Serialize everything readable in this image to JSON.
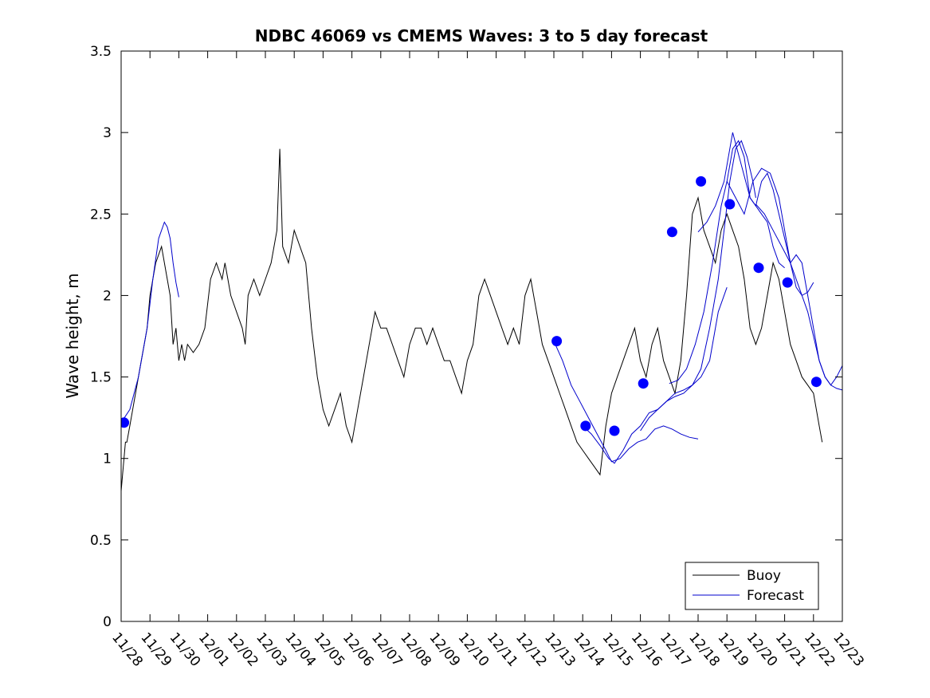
{
  "chart_data": {
    "type": "line",
    "title": "NDBC 46069 vs CMEMS Waves: 3 to 5 day forecast",
    "xlabel": "",
    "ylabel": "Wave height, m",
    "xlim": [
      0,
      25
    ],
    "ylim": [
      0,
      3.5
    ],
    "grid": false,
    "legend_position": "bottom-right",
    "x_tick_labels": [
      "11/28",
      "11/29",
      "11/30",
      "12/01",
      "12/02",
      "12/03",
      "12/04",
      "12/05",
      "12/06",
      "12/07",
      "12/08",
      "12/09",
      "12/10",
      "12/11",
      "12/12",
      "12/13",
      "12/14",
      "12/15",
      "12/16",
      "12/17",
      "12/18",
      "12/19",
      "12/20",
      "12/21",
      "12/22",
      "12/23"
    ],
    "y_ticks": [
      0,
      0.5,
      1,
      1.5,
      2,
      2.5,
      3,
      3.5
    ],
    "colors": {
      "buoy": "#000000",
      "forecast": "#0000cc",
      "markers": "#0000ff"
    },
    "series": [
      {
        "name": "Buoy",
        "x": [
          0.0,
          0.05,
          0.1,
          0.15,
          0.2,
          0.3,
          0.4,
          0.5,
          0.6,
          0.7,
          0.8,
          0.9,
          1.0,
          1.2,
          1.4,
          1.6,
          1.7,
          1.8,
          1.9,
          2.0,
          2.1,
          2.2,
          2.3,
          2.5,
          2.7,
          2.9,
          3.1,
          3.3,
          3.5,
          3.6,
          3.8,
          4.0,
          4.2,
          4.3,
          4.4,
          4.6,
          4.8,
          5.0,
          5.2,
          5.4,
          5.5,
          5.6,
          5.8,
          6.0,
          6.2,
          6.4,
          6.5,
          6.6,
          6.8,
          7.0,
          7.2,
          7.4,
          7.6,
          7.8,
          8.0,
          8.2,
          8.4,
          8.6,
          8.8,
          9.0,
          9.2,
          9.4,
          9.6,
          9.8,
          10.0,
          10.2,
          10.4,
          10.6,
          10.8,
          11.0,
          11.2,
          11.4,
          11.6,
          11.8,
          12.0,
          12.2,
          12.4,
          12.6,
          12.8,
          13.0,
          13.2,
          13.4,
          13.6,
          13.8,
          14.0,
          14.2,
          14.4,
          14.6,
          14.8,
          15.0,
          15.2,
          15.4,
          15.6,
          15.8,
          16.0,
          16.2,
          16.4,
          16.6,
          16.8,
          17.0,
          17.2,
          17.4,
          17.6,
          17.8,
          18.0,
          18.2,
          18.4,
          18.6,
          18.8,
          19.0,
          19.2,
          19.4,
          19.6,
          19.8,
          20.0,
          20.2,
          20.4,
          20.6,
          20.8,
          21.0,
          21.2,
          21.4,
          21.6,
          21.8,
          22.0,
          22.2,
          22.4,
          22.6,
          22.8,
          23.0,
          23.2,
          23.4,
          23.6,
          23.8,
          24.0,
          24.2,
          24.3
        ],
        "y": [
          0.8,
          0.9,
          1.0,
          1.1,
          1.1,
          1.2,
          1.3,
          1.4,
          1.5,
          1.6,
          1.7,
          1.8,
          2.0,
          2.2,
          2.3,
          2.1,
          2.0,
          1.7,
          1.8,
          1.6,
          1.7,
          1.6,
          1.7,
          1.65,
          1.7,
          1.8,
          2.1,
          2.2,
          2.1,
          2.2,
          2.0,
          1.9,
          1.8,
          1.7,
          2.0,
          2.1,
          2.0,
          2.1,
          2.2,
          2.4,
          2.9,
          2.3,
          2.2,
          2.4,
          2.3,
          2.2,
          2.0,
          1.8,
          1.5,
          1.3,
          1.2,
          1.3,
          1.4,
          1.2,
          1.1,
          1.3,
          1.5,
          1.7,
          1.9,
          1.8,
          1.8,
          1.7,
          1.6,
          1.5,
          1.7,
          1.8,
          1.8,
          1.7,
          1.8,
          1.7,
          1.6,
          1.6,
          1.5,
          1.4,
          1.6,
          1.7,
          2.0,
          2.1,
          2.0,
          1.9,
          1.8,
          1.7,
          1.8,
          1.7,
          2.0,
          2.1,
          1.9,
          1.7,
          1.6,
          1.5,
          1.4,
          1.3,
          1.2,
          1.1,
          1.05,
          1.0,
          0.95,
          0.9,
          1.2,
          1.4,
          1.5,
          1.6,
          1.7,
          1.8,
          1.6,
          1.5,
          1.7,
          1.8,
          1.6,
          1.5,
          1.4,
          1.6,
          2.0,
          2.5,
          2.6,
          2.4,
          2.3,
          2.2,
          2.4,
          2.5,
          2.4,
          2.3,
          2.1,
          1.8,
          1.7,
          1.8,
          2.0,
          2.2,
          2.1,
          1.9,
          1.7,
          1.6,
          1.5,
          1.45,
          1.4,
          1.2,
          1.1
        ]
      },
      {
        "name": "Forecast",
        "segments": [
          {
            "x": [
              0.0,
              0.3,
              0.6,
              0.9,
              1.1,
              1.3,
              1.5,
              1.6,
              1.7,
              1.8,
              1.9,
              2.0
            ],
            "y": [
              1.22,
              1.3,
              1.5,
              1.8,
              2.1,
              2.35,
              2.45,
              2.42,
              2.35,
              2.2,
              2.08,
              1.99
            ]
          },
          {
            "x": [
              15.0,
              15.3,
              15.6,
              15.9,
              16.2,
              16.5,
              16.8,
              17.0,
              17.3,
              17.6,
              17.9,
              18.2,
              18.5,
              18.8,
              19.1,
              19.4,
              19.7,
              20.0
            ],
            "y": [
              1.72,
              1.6,
              1.45,
              1.35,
              1.25,
              1.15,
              1.05,
              0.98,
              1.0,
              1.06,
              1.1,
              1.12,
              1.18,
              1.2,
              1.18,
              1.15,
              1.13,
              1.12
            ]
          },
          {
            "x": [
              16.0,
              16.3,
              16.6,
              16.9,
              17.1,
              17.4,
              17.7,
              18.0,
              18.3,
              18.6,
              18.9,
              19.2,
              19.5,
              19.8,
              20.1,
              20.4,
              20.7,
              21.0
            ],
            "y": [
              1.2,
              1.15,
              1.08,
              1.0,
              0.97,
              1.05,
              1.15,
              1.2,
              1.28,
              1.3,
              1.35,
              1.4,
              1.42,
              1.45,
              1.5,
              1.6,
              1.9,
              2.05
            ]
          },
          {
            "x": [
              18.0,
              18.3,
              18.6,
              18.9,
              19.2,
              19.5,
              19.8,
              20.1,
              20.4,
              20.7,
              20.9,
              21.1,
              21.3,
              21.5,
              21.7,
              21.9,
              22.0
            ],
            "y": [
              1.17,
              1.25,
              1.3,
              1.35,
              1.38,
              1.4,
              1.45,
              1.55,
              1.8,
              2.1,
              2.4,
              2.7,
              2.9,
              2.95,
              2.85,
              2.7,
              2.6
            ]
          },
          {
            "x": [
              19.0,
              19.3,
              19.6,
              19.9,
              20.2,
              20.5,
              20.8,
              21.0,
              21.2,
              21.4,
              21.6,
              21.8,
              22.0,
              22.2,
              22.4,
              22.6,
              22.8,
              23.0
            ],
            "y": [
              1.46,
              1.48,
              1.55,
              1.7,
              1.9,
              2.2,
              2.55,
              2.7,
              2.9,
              2.95,
              2.85,
              2.6,
              2.55,
              2.5,
              2.45,
              2.3,
              2.2,
              2.17
            ]
          },
          {
            "x": [
              20.0,
              20.3,
              20.6,
              20.9,
              21.2,
              21.5,
              21.8,
              22.0,
              22.2,
              22.4,
              22.6,
              22.8,
              23.0,
              23.2,
              23.4,
              23.6,
              23.8,
              24.0
            ],
            "y": [
              2.39,
              2.45,
              2.55,
              2.7,
              3.0,
              2.8,
              2.6,
              2.55,
              2.7,
              2.75,
              2.65,
              2.5,
              2.35,
              2.2,
              2.05,
              2.0,
              2.02,
              2.08
            ]
          },
          {
            "x": [
              21.0,
              21.3,
              21.6,
              21.9,
              22.2,
              22.5,
              22.8,
              23.0,
              23.2,
              23.4,
              23.6,
              23.8,
              24.0,
              24.2,
              24.4,
              24.6,
              24.8,
              25.0
            ],
            "y": [
              2.7,
              2.6,
              2.5,
              2.7,
              2.78,
              2.75,
              2.6,
              2.4,
              2.2,
              2.25,
              2.2,
              2.0,
              1.8,
              1.6,
              1.5,
              1.45,
              1.43,
              1.42
            ]
          },
          {
            "x": [
              22.0,
              22.3,
              22.6,
              22.9,
              23.2,
              23.5,
              23.8,
              24.0,
              24.2,
              24.4,
              24.6,
              24.8,
              25.0
            ],
            "y": [
              2.56,
              2.5,
              2.4,
              2.3,
              2.2,
              2.05,
              1.9,
              1.75,
              1.6,
              1.5,
              1.45,
              1.5,
              1.57
            ]
          }
        ]
      }
    ],
    "markers": {
      "x": [
        0.1,
        15.1,
        16.1,
        17.1,
        18.1,
        19.1,
        20.1,
        21.1,
        22.1,
        23.1,
        24.1
      ],
      "y": [
        1.22,
        1.72,
        1.2,
        1.17,
        1.46,
        2.39,
        2.7,
        2.56,
        2.17,
        2.08,
        1.47
      ]
    }
  }
}
